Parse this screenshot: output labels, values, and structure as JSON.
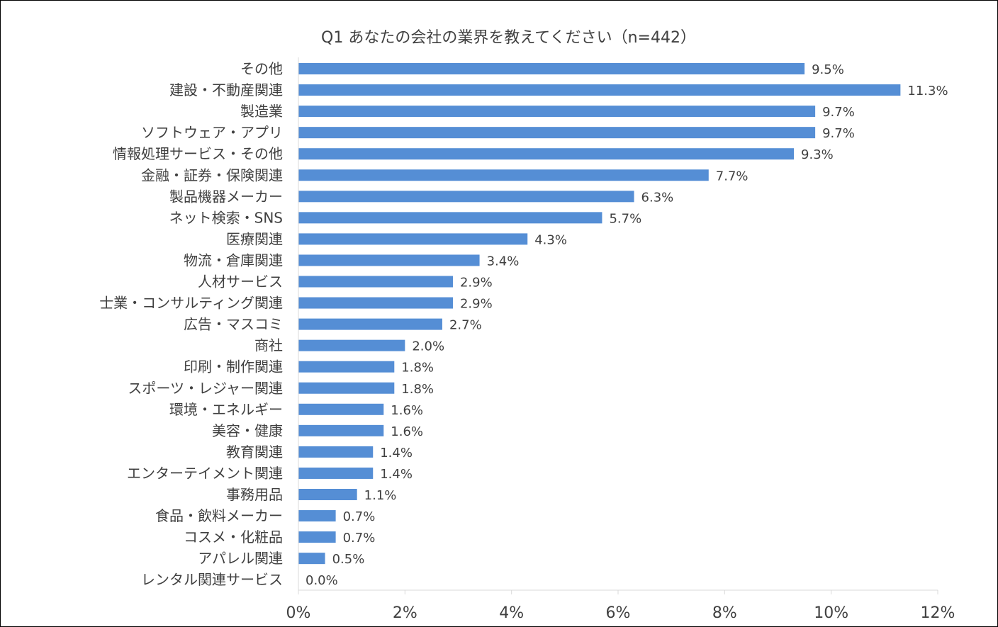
{
  "chart_data": {
    "type": "bar",
    "orientation": "horizontal",
    "title": "Q1 あなたの会社の業界を教えてください（n=442）",
    "categories": [
      "その他",
      "建設・不動産関連",
      "製造業",
      "ソフトウェア・アプリ",
      "情報処理サービス・その他",
      "金融・証券・保険関連",
      "製品機器メーカー",
      "ネット検索・SNS",
      "医療関連",
      "物流・倉庫関連",
      "人材サービス",
      "士業・コンサルティング関連",
      "広告・マスコミ",
      "商社",
      "印刷・制作関連",
      "スポーツ・レジャー関連",
      "環境・エネルギー",
      "美容・健康",
      "教育関連",
      "エンターテイメント関連",
      "事務用品",
      "食品・飲料メーカー",
      "コスメ・化粧品",
      "アパレル関連",
      "レンタル関連サービス"
    ],
    "values": [
      9.5,
      11.3,
      9.7,
      9.7,
      9.3,
      7.7,
      6.3,
      5.7,
      4.3,
      3.4,
      2.9,
      2.9,
      2.7,
      2.0,
      1.8,
      1.8,
      1.6,
      1.6,
      1.4,
      1.4,
      1.1,
      0.7,
      0.7,
      0.5,
      0.0
    ],
    "value_labels": [
      "9.5%",
      "11.3%",
      "9.7%",
      "9.7%",
      "9.3%",
      "7.7%",
      "6.3%",
      "5.7%",
      "4.3%",
      "3.4%",
      "2.9%",
      "2.9%",
      "2.7%",
      "2.0%",
      "1.8%",
      "1.8%",
      "1.6%",
      "1.6%",
      "1.4%",
      "1.4%",
      "1.1%",
      "0.7%",
      "0.7%",
      "0.5%",
      "0.0%"
    ],
    "xlim": [
      0,
      12
    ],
    "xticks": [
      0,
      2,
      4,
      6,
      8,
      10,
      12
    ],
    "xtick_labels": [
      "0%",
      "2%",
      "4%",
      "6%",
      "8%",
      "10%",
      "12%"
    ],
    "xlabel": "",
    "ylabel": "",
    "grid": false,
    "legend": "none",
    "bar_color": "#558ED5"
  }
}
